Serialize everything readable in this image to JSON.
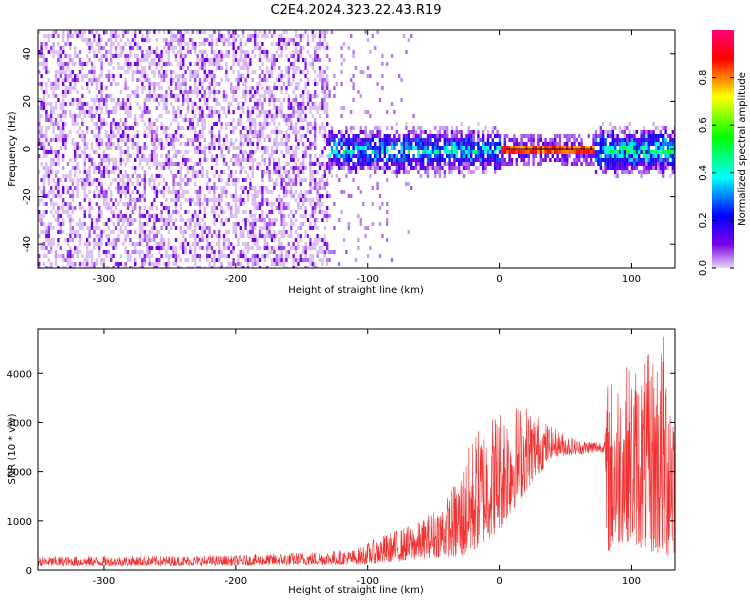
{
  "title": "C2E4.2024.323.22.43.R19",
  "chart_data": [
    {
      "type": "heatmap",
      "xlabel": "Height of straight line (km)",
      "ylabel": "Frequency (Hz)",
      "xlim": [
        -350,
        133
      ],
      "ylim": [
        -50,
        50
      ],
      "xticks": [
        -300,
        -200,
        -100,
        0,
        100
      ],
      "yticks": [
        -40,
        -20,
        0,
        20,
        40
      ],
      "colorbar": {
        "label": "Normalized spectral amplitude",
        "range": [
          0,
          1
        ],
        "ticks": [
          0.0,
          0.2,
          0.4,
          0.6,
          0.8
        ],
        "colors": [
          "#e6d5f5",
          "#7b00e8",
          "#0000ff",
          "#00ffff",
          "#00ff00",
          "#ffff00",
          "#ff0000",
          "#ff0077"
        ]
      },
      "regions": [
        {
          "x_range": [
            -350,
            -130
          ],
          "frequency_band": [
            -50,
            50
          ],
          "amplitude": 0.05
        },
        {
          "x_range": [
            -130,
            0
          ],
          "frequency_band": [
            -8,
            10
          ],
          "amplitude": 0.3
        },
        {
          "x_range": [
            0,
            72
          ],
          "frequency_band": [
            -1,
            1
          ],
          "amplitude": 0.9
        },
        {
          "x_range": [
            72,
            133
          ],
          "frequency_band": [
            -10,
            10
          ],
          "amplitude": 0.35
        }
      ]
    },
    {
      "type": "line",
      "xlabel": "Height of straight line (km)",
      "ylabel": "SNR (10 * v/v)",
      "xlim": [
        -350,
        133
      ],
      "ylim": [
        0,
        4900
      ],
      "xticks": [
        -300,
        -200,
        -100,
        0,
        100
      ],
      "yticks": [
        0,
        1000,
        2000,
        3000,
        4000
      ],
      "color": "#f03232",
      "envelope": {
        "x": [
          -350,
          -200,
          -110,
          -90,
          -60,
          -40,
          -30,
          -20,
          0,
          20,
          40,
          60,
          80,
          81,
          95,
          110,
          125,
          133
        ],
        "low": [
          80,
          90,
          110,
          130,
          220,
          280,
          200,
          350,
          800,
          1600,
          2300,
          2350,
          2400,
          300,
          600,
          400,
          200,
          300
        ],
        "high": [
          280,
          300,
          420,
          700,
          1000,
          1500,
          2000,
          2800,
          3400,
          3400,
          2900,
          2650,
          2650,
          3900,
          4200,
          4300,
          4900,
          4200
        ]
      }
    }
  ]
}
